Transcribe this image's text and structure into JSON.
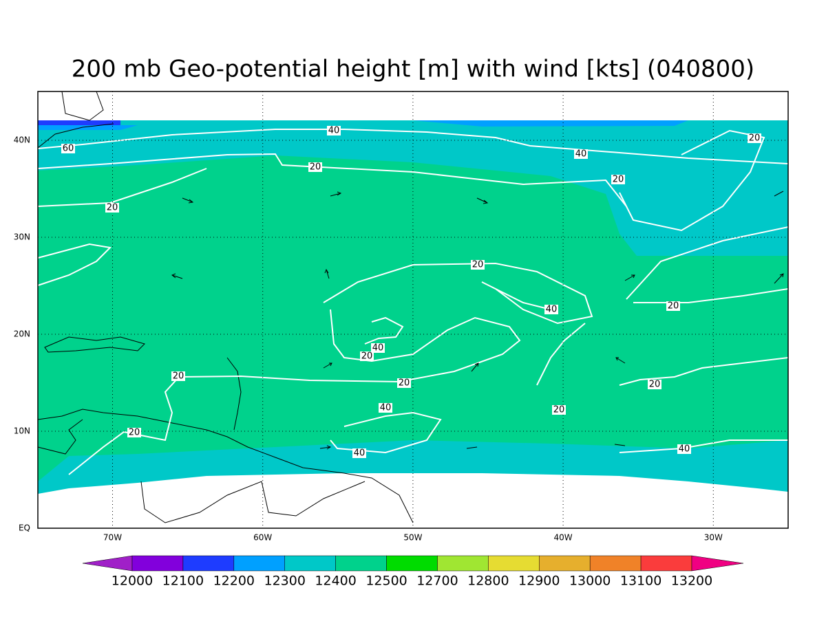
{
  "title": "200 mb Geo-potential height [m] with wind [kts] (040800)",
  "lon_labels": [
    "70W",
    "60W",
    "50W",
    "40W",
    "30W"
  ],
  "lat_labels": [
    "EQ",
    "10N",
    "20N",
    "30N",
    "40N"
  ],
  "contour_labels": [
    40,
    60,
    20,
    40,
    20,
    20,
    20,
    20,
    40,
    20,
    40,
    20,
    20,
    20,
    20,
    40,
    20,
    20,
    40,
    40
  ],
  "colorbar": {
    "levels": [
      12000,
      12100,
      12200,
      12300,
      12400,
      12500,
      12700,
      12800,
      12900,
      13000,
      13100,
      13200
    ],
    "colors": [
      "#a020c8",
      "#8200dc",
      "#1e3cff",
      "#00a0ff",
      "#00c8c8",
      "#00d28c",
      "#00dc00",
      "#a0e632",
      "#e6dc32",
      "#e6af2d",
      "#f08228",
      "#fa3c3c",
      "#f00082"
    ]
  }
}
